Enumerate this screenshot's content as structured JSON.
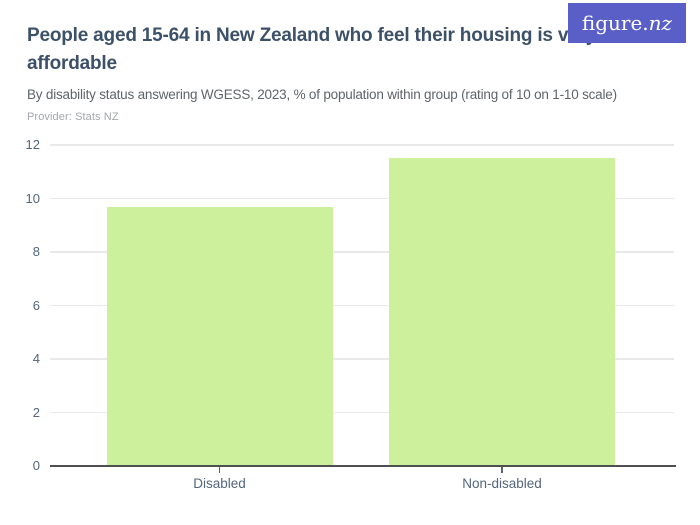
{
  "header": {
    "title": "People aged 15-64 in New Zealand who feel their housing is very affordable",
    "subtitle": "By disability status answering WGESS, 2023, % of population within group (rating of 10 on 1-10 scale)",
    "provider": "Provider: Stats NZ"
  },
  "logo": {
    "text_regular": "figure.",
    "text_italic": "nz"
  },
  "colors": {
    "brand_background": "#5a5fc8",
    "brand_text": "#ffffff",
    "title": "#3c5168",
    "subtitle": "#5f6469",
    "provider": "#a3a7ab",
    "axis_label": "#55657c",
    "gridline": "#e8e9eb",
    "baseline": "#4f4f4f",
    "bar": "#cdf09d"
  },
  "chart_data": {
    "type": "bar",
    "title": "People aged 15-64 in New Zealand who feel their housing is very affordable",
    "subtitle": "By disability status answering WGESS, 2023, % of population within group (rating of 10 on 1-10 scale)",
    "categories": [
      "Disabled",
      "Non-disabled"
    ],
    "values": [
      9.7,
      11.5
    ],
    "xlabel": "",
    "ylabel": "",
    "ylim": [
      0,
      12
    ],
    "yticks": [
      0,
      2,
      4,
      6,
      8,
      10,
      12
    ],
    "grid": "horizontal",
    "legend": "none",
    "bar_color": "#cdf09d"
  }
}
